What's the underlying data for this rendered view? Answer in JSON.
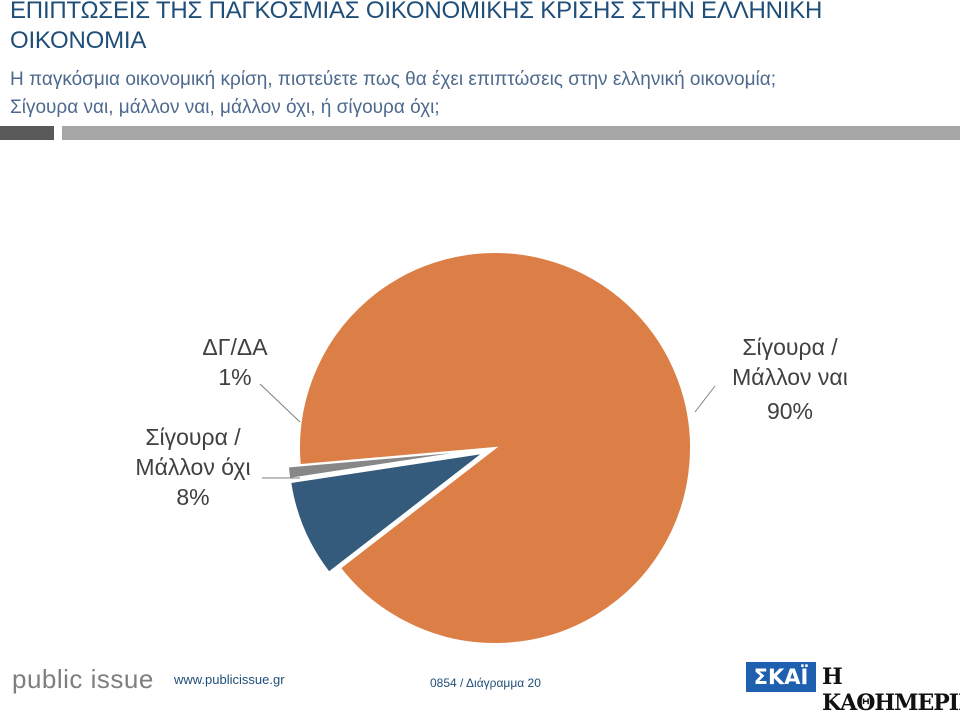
{
  "header": {
    "title": "ΕΠΙΠΤΩΣΕΙΣ ΤΗΣ ΠΑΓΚΟΣΜΙΑΣ ΟΙΚΟΝΟΜΙΚΗΣ ΚΡΙΣΗΣ ΣΤΗΝ ΕΛΛΗΝΙΚΗ ΟΙΚΟΝΟΜΙΑ",
    "question_line1": "Η παγκόσμια οικονομική κρίση, πιστεύετε πως θα έχει επιπτώσεις στην ελληνική οικονομία;",
    "question_line2": "Σίγουρα ναι, μάλλον ναι, μάλλον όχι, ή σίγουρα όχι;"
  },
  "chart_data": {
    "type": "pie",
    "slices": [
      {
        "label_line1": "Σίγουρα /",
        "label_line2": "Μάλλον ναι",
        "value": 90,
        "value_text": "90%",
        "color": "#dc7f47"
      },
      {
        "label_line1": "Σίγουρα /",
        "label_line2": "Μάλλον όχι",
        "value": 8,
        "value_text": "8%",
        "color": "#345b7c"
      },
      {
        "label_line1": "ΔΓ/ΔΑ",
        "label_line2": "",
        "value": 1,
        "value_text": "1%",
        "color": "#878787"
      }
    ]
  },
  "footer": {
    "brand": "public issue",
    "website": "www.publicissue.gr",
    "code": "0854 / Διάγραμμα 20",
    "logo_skai": "ΣΚΑΪ",
    "logo_kathimerini": "Η ΚΑΘΗΜΕΡΙΝΗ"
  }
}
